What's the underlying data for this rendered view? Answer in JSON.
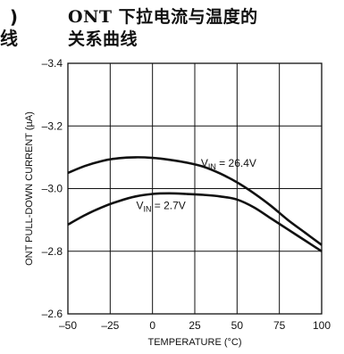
{
  "left_fragments": [
    ")",
    "线"
  ],
  "title_lines": [
    "ONT 下拉电流与温度的",
    "关系曲线"
  ],
  "chart_data": {
    "type": "line",
    "xlabel": "TEMPERATURE (°C)",
    "ylabel": "ONT PULL-DOWN CURRENT (µA)",
    "xlim": [
      -50,
      100
    ],
    "ylim": [
      -3.4,
      -2.6
    ],
    "y_reversed": true,
    "x_ticks": [
      -50,
      -25,
      0,
      25,
      50,
      75,
      100
    ],
    "y_ticks": [
      -3.4,
      -3.2,
      -3.0,
      -2.8,
      -2.6
    ],
    "x_tick_labels": [
      "–50",
      "–25",
      "0",
      "25",
      "50",
      "75",
      "100"
    ],
    "y_tick_labels": [
      "–3.4",
      "–3.2",
      "–3.0",
      "–2.8",
      "–2.6"
    ],
    "grid": true,
    "series": [
      {
        "label_sub": "IN",
        "label_rest": " = 26.4V",
        "x": [
          -50,
          -40,
          -30,
          -20,
          -10,
          0,
          10,
          20,
          30,
          40,
          50,
          60,
          70,
          80,
          90,
          100
        ],
        "y": [
          -3.05,
          -3.072,
          -3.088,
          -3.097,
          -3.1,
          -3.098,
          -3.092,
          -3.083,
          -3.07,
          -3.048,
          -3.02,
          -2.985,
          -2.945,
          -2.9,
          -2.86,
          -2.82
        ]
      },
      {
        "label_sub": "IN",
        "label_rest": " = 2.7V",
        "x": [
          -50,
          -40,
          -30,
          -20,
          -10,
          0,
          10,
          20,
          30,
          40,
          50,
          60,
          70,
          80,
          90,
          100
        ],
        "y": [
          -2.885,
          -2.915,
          -2.94,
          -2.96,
          -2.975,
          -2.983,
          -2.985,
          -2.983,
          -2.98,
          -2.975,
          -2.965,
          -2.94,
          -2.905,
          -2.87,
          -2.835,
          -2.8
        ]
      }
    ]
  }
}
